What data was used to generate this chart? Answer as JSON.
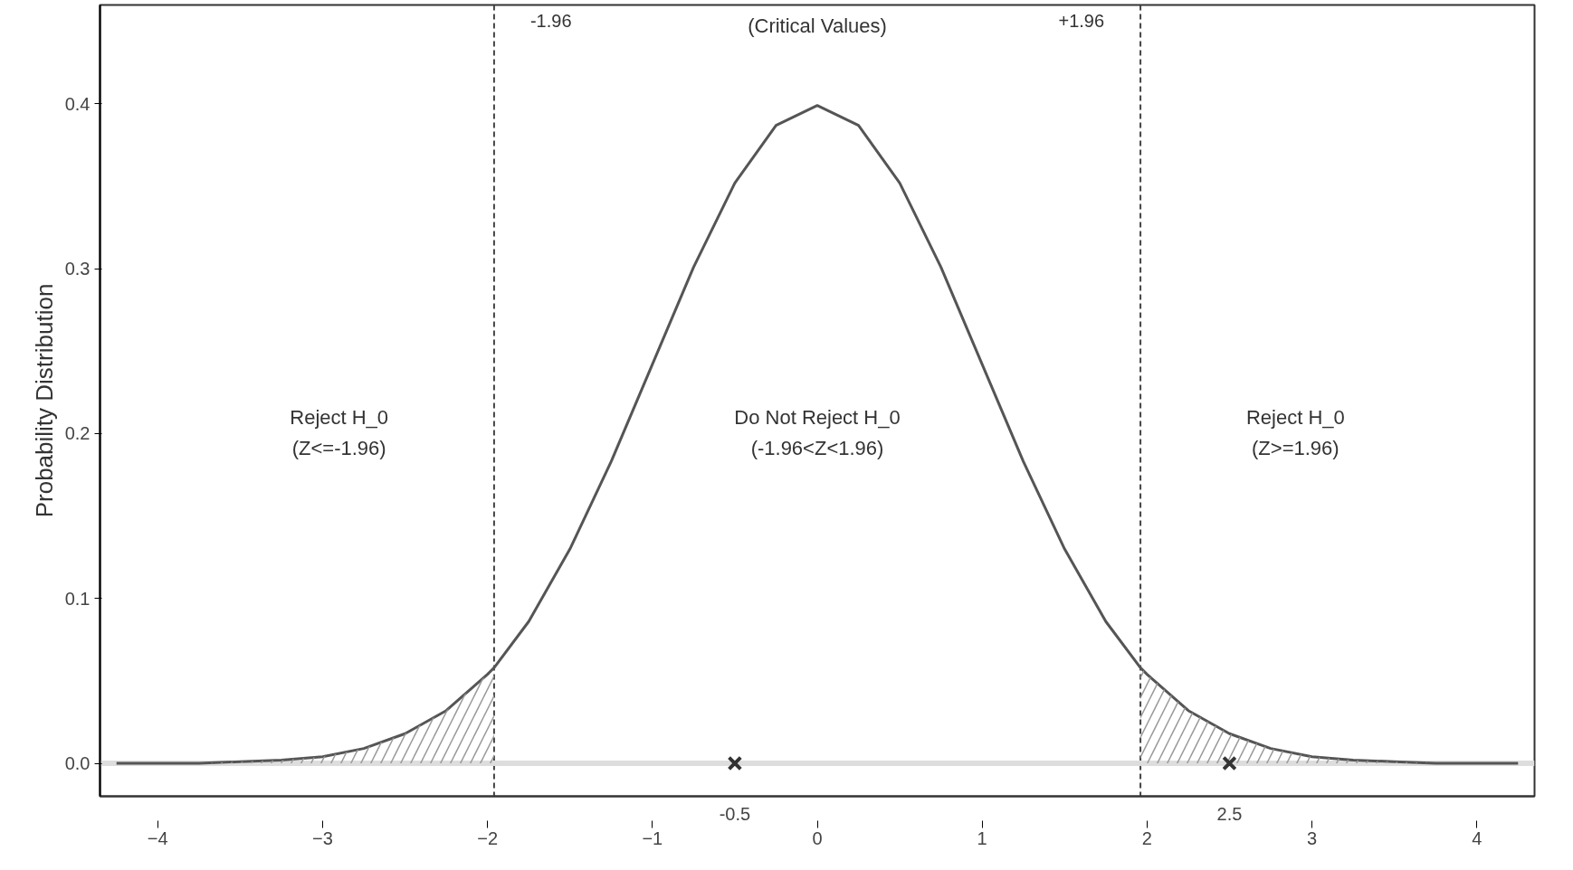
{
  "chart_data": {
    "type": "line",
    "ylabel": "Probability Distribution",
    "xlim": [
      -4.35,
      4.35
    ],
    "ylim": [
      -0.02,
      0.46
    ],
    "xticks": [
      -4,
      -3,
      -2,
      -1,
      0,
      1,
      2,
      3,
      4
    ],
    "yticks": [
      {
        "value": 0,
        "label": "0.0"
      },
      0.1,
      0.2,
      0.3,
      0.4
    ],
    "grid": false,
    "marker": "none",
    "line_style": "solid",
    "series": [
      {
        "type": "line",
        "color": "#555555",
        "x": [
          -4.25,
          -4,
          -3.75,
          -3.5,
          -3.25,
          -3,
          -2.75,
          -2.5,
          -2.25,
          -2,
          -1.96,
          -1.75,
          -1.5,
          -1.25,
          -1,
          -0.75,
          -0.5,
          -0.25,
          0,
          0.25,
          0.5,
          0.75,
          1,
          1.25,
          1.5,
          1.75,
          1.96,
          2,
          2.25,
          2.5,
          2.75,
          3,
          3.25,
          3.5,
          3.75,
          4,
          4.25
        ],
        "values": [
          0.0,
          0.0,
          0.0,
          0.001,
          0.002,
          0.004,
          0.009,
          0.018,
          0.032,
          0.054,
          0.058,
          0.086,
          0.13,
          0.183,
          0.242,
          0.301,
          0.352,
          0.387,
          0.399,
          0.387,
          0.352,
          0.301,
          0.242,
          0.183,
          0.13,
          0.086,
          0.058,
          0.054,
          0.032,
          0.018,
          0.009,
          0.004,
          0.002,
          0.001,
          0.0,
          0.0,
          0.0
        ]
      },
      {
        "type": "area",
        "color": "#999999",
        "x": [
          -4.25,
          -4,
          -3.75,
          -3.5,
          -3.25,
          -3,
          -2.75,
          -2.5,
          -2.25,
          -2,
          -1.96
        ],
        "values": [
          0.0,
          0.0,
          0.0,
          0.001,
          0.002,
          0.004,
          0.009,
          0.018,
          0.032,
          0.054,
          0.058
        ]
      },
      {
        "type": "area",
        "color": "#999999",
        "x": [
          1.96,
          2,
          2.25,
          2.5,
          2.75,
          3,
          3.25,
          3.5,
          3.75,
          4,
          4.25
        ],
        "values": [
          0.058,
          0.054,
          0.032,
          0.018,
          0.009,
          0.004,
          0.002,
          0.001,
          0.0,
          0.0,
          0.0
        ]
      },
      {
        "type": "scatter",
        "marker": "cross",
        "color": "#333333",
        "x": [
          -0.5,
          2.5
        ],
        "values": [
          0,
          0
        ]
      }
    ],
    "ref_lines": [
      {
        "axis": "x",
        "value": -1.96,
        "label": "-1.96",
        "line_style": "dashed",
        "color": "#444444"
      },
      {
        "axis": "x",
        "value": 1.96,
        "label": "+1.96",
        "line_style": "dashed",
        "color": "#444444"
      },
      {
        "axis": "y",
        "value": 0,
        "label": null,
        "line_style": "solid",
        "color": "#dddddd"
      }
    ],
    "annotations": [
      "(Critical Values)",
      "Reject H_0\n(Z<=-1.96)",
      "Do Not Reject H_0\n(-1.96<Z<1.96)",
      "Reject H_0\n(Z>=1.96)",
      {
        "text": "-0.5",
        "x": -0.5,
        "y": 0
      },
      {
        "text": "2.5",
        "x": 2.5,
        "y": 0
      }
    ]
  }
}
